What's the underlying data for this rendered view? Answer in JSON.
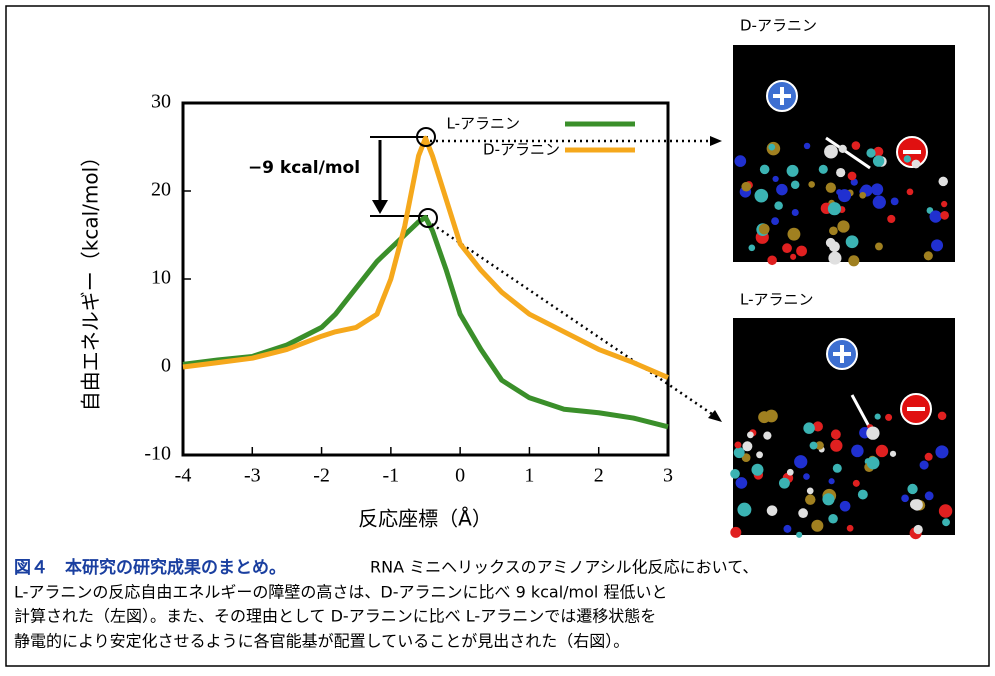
{
  "chart_data": {
    "type": "line",
    "x_label": "反応座標（Å）",
    "y_label": "自由エネルギー（kcal/mol）",
    "annotation": "−9 kcal/mol",
    "x": [
      -4,
      -3.5,
      -3,
      -2.5,
      -2,
      -1.8,
      -1.5,
      -1.2,
      -1,
      -0.8,
      -0.6,
      -0.5,
      -0.4,
      -0.2,
      0,
      0.3,
      0.6,
      1,
      1.5,
      2,
      2.5,
      3
    ],
    "series": [
      {
        "name": "L-アラニン",
        "color": "#3a8f2a",
        "values": [
          0.3,
          0.8,
          1.2,
          2.5,
          4.5,
          6,
          9,
          12,
          13.5,
          15,
          16.5,
          17,
          15.5,
          11,
          6,
          2,
          -1.5,
          -3.5,
          -4.8,
          -5.2,
          -5.8,
          -6.8
        ]
      },
      {
        "name": "D-アラニン",
        "color": "#f5a81c",
        "values": [
          0,
          0.5,
          1,
          2,
          3.5,
          4,
          4.5,
          6,
          10,
          16,
          24,
          26,
          24,
          19,
          14,
          11,
          8.5,
          6,
          4,
          2,
          0.5,
          -1.2
        ]
      }
    ],
    "xlim": [
      -4,
      3
    ],
    "xticks": [
      -4,
      -3,
      -2,
      -1,
      0,
      1,
      2,
      3
    ],
    "ylim": [
      -10,
      30
    ],
    "yticks": [
      -10,
      0,
      10,
      20,
      30
    ],
    "legend": "upper right"
  },
  "panels": [
    {
      "label": "D-アラニン"
    },
    {
      "label": "L-アラニン"
    }
  ],
  "caption": {
    "heading": "図４　本研究の研究成果のまとめ。",
    "lines": [
      "RNA ミニヘリックスのアミノアシル化反応において、",
      "L-アラニンの反応自由エネルギーの障壁の高さは、D-アラニンに比べ 9 kcal/mol 程低いと",
      "計算された（左図）。また、その理由として D-アラニンに比べ L-アラニンでは遷移状態を",
      "静電的により安定化させるように各官能基が配置していることが見出された（右図）。"
    ]
  }
}
